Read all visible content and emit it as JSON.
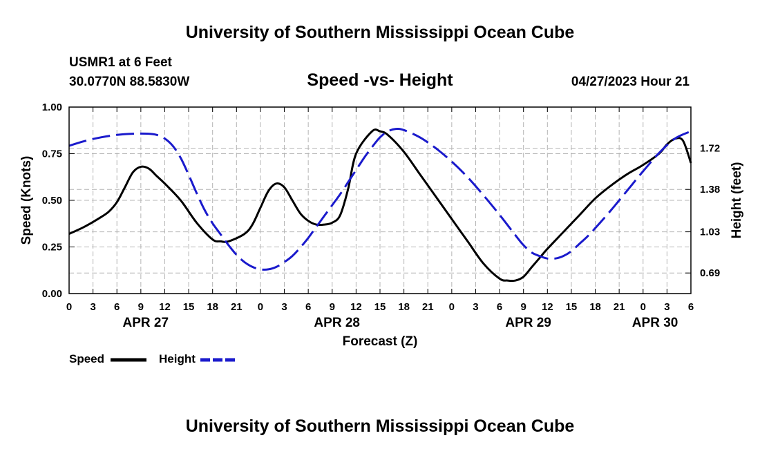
{
  "page": {
    "title_top": "University of Southern Mississippi Ocean Cube",
    "title_bottom": "University of Southern Mississippi Ocean Cube",
    "station": "USMR1 at 6 Feet",
    "coords": "30.0770N  88.5830W",
    "datetime": "04/27/2023 Hour 21"
  },
  "colors": {
    "speed": "#000000",
    "height": "#1a1acc",
    "grid": "#b4b4b4"
  },
  "chart_data": {
    "type": "line",
    "title": "Speed -vs- Height",
    "xlabel": "Forecast (Z)",
    "ylabel": "Speed (Knots)",
    "y2label": "Height (feet)",
    "x_range_hours": [
      0,
      78
    ],
    "ylim": [
      0,
      1
    ],
    "y2lim": [
      0.52,
      2.06
    ],
    "yticks": [
      "0.00",
      "0.25",
      "0.50",
      "0.75",
      "1.00"
    ],
    "y2ticks": [
      "0.69",
      "1.03",
      "1.38",
      "1.72"
    ],
    "xtick_labels": [
      "0",
      "3",
      "6",
      "9",
      "12",
      "15",
      "18",
      "21",
      "0",
      "3",
      "6",
      "9",
      "12",
      "15",
      "18",
      "21",
      "0",
      "3",
      "6",
      "9",
      "12",
      "15",
      "18",
      "21",
      "0",
      "3",
      "6"
    ],
    "day_labels": [
      {
        "label": "APR 27",
        "hour": 9.6
      },
      {
        "label": "APR 28",
        "hour": 33.6
      },
      {
        "label": "APR 29",
        "hour": 57.6
      },
      {
        "label": "APR 30",
        "hour": 73.5
      }
    ],
    "legend": [
      {
        "name": "Speed",
        "style": "solid"
      },
      {
        "name": "Height",
        "style": "dashed"
      }
    ],
    "series": [
      {
        "name": "Speed",
        "axis": "left",
        "x": [
          0,
          2,
          4,
          5,
          6,
          7,
          8,
          9,
          10,
          11,
          12,
          14,
          16,
          18,
          19,
          20,
          22,
          23,
          24,
          25,
          26,
          27,
          28,
          29,
          30,
          31,
          32,
          33,
          34,
          35,
          36,
          38,
          39,
          40,
          42,
          44,
          46,
          48,
          50,
          52,
          54,
          55,
          56,
          57,
          58,
          59,
          60,
          62,
          64,
          66,
          68,
          70,
          72,
          74,
          75,
          76,
          77,
          78
        ],
        "y": [
          0.32,
          0.36,
          0.41,
          0.44,
          0.49,
          0.57,
          0.65,
          0.68,
          0.67,
          0.63,
          0.59,
          0.5,
          0.38,
          0.29,
          0.28,
          0.28,
          0.32,
          0.37,
          0.46,
          0.55,
          0.59,
          0.57,
          0.5,
          0.43,
          0.39,
          0.37,
          0.37,
          0.38,
          0.42,
          0.56,
          0.75,
          0.87,
          0.87,
          0.85,
          0.76,
          0.64,
          0.52,
          0.4,
          0.28,
          0.16,
          0.08,
          0.07,
          0.07,
          0.09,
          0.14,
          0.19,
          0.24,
          0.33,
          0.42,
          0.51,
          0.58,
          0.64,
          0.69,
          0.75,
          0.8,
          0.83,
          0.82,
          0.7
        ]
      },
      {
        "name": "Height",
        "axis": "right",
        "x": [
          0,
          2,
          4,
          6,
          8,
          10,
          11,
          12,
          13,
          14,
          15,
          16,
          17,
          18,
          19,
          20,
          21,
          22,
          23,
          24,
          25,
          26,
          27,
          28,
          29,
          30,
          31,
          32,
          33,
          34,
          35,
          36,
          37,
          38,
          39,
          40,
          41,
          42,
          44,
          46,
          48,
          50,
          52,
          54,
          56,
          57,
          58,
          59,
          60,
          61,
          62,
          63,
          64,
          65,
          66,
          68,
          70,
          72,
          74,
          76,
          78
        ],
        "y": [
          1.74,
          1.78,
          1.81,
          1.83,
          1.84,
          1.84,
          1.83,
          1.8,
          1.74,
          1.64,
          1.5,
          1.35,
          1.21,
          1.1,
          1.01,
          0.92,
          0.84,
          0.78,
          0.74,
          0.72,
          0.72,
          0.74,
          0.78,
          0.83,
          0.9,
          0.98,
          1.07,
          1.16,
          1.25,
          1.34,
          1.44,
          1.54,
          1.64,
          1.73,
          1.81,
          1.86,
          1.88,
          1.87,
          1.81,
          1.72,
          1.61,
          1.48,
          1.33,
          1.17,
          1.0,
          0.92,
          0.86,
          0.83,
          0.81,
          0.81,
          0.83,
          0.87,
          0.93,
          0.99,
          1.06,
          1.21,
          1.37,
          1.53,
          1.68,
          1.8,
          1.86
        ]
      }
    ]
  }
}
